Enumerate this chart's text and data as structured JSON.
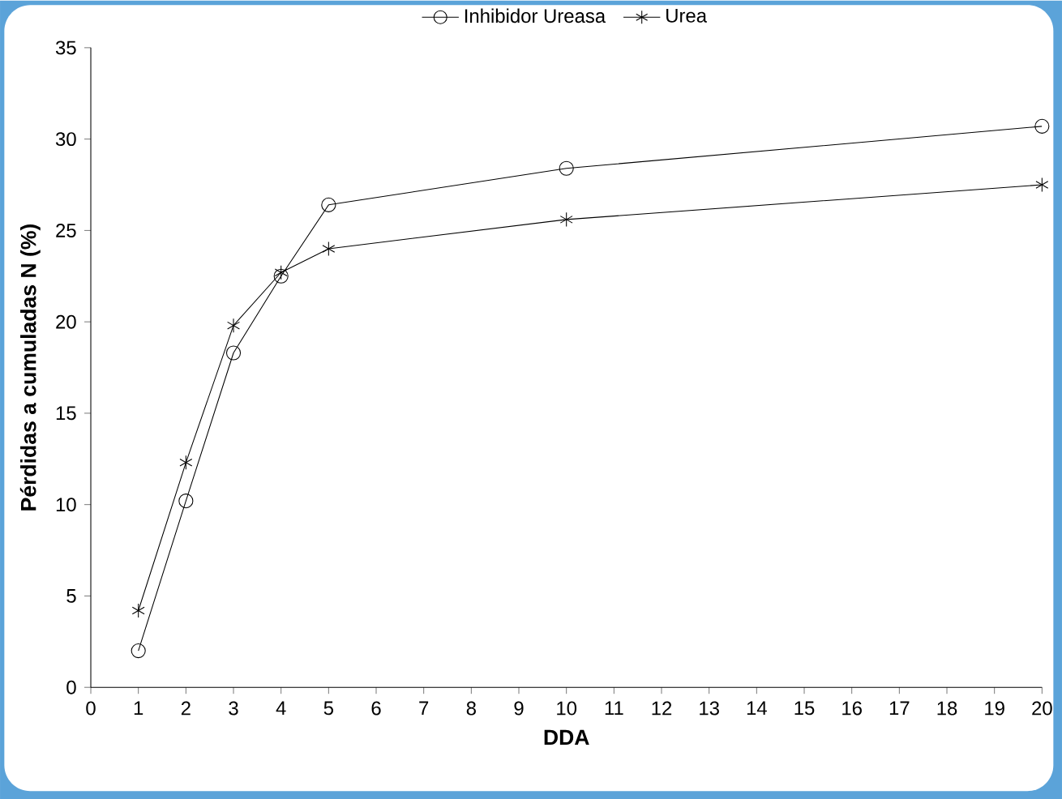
{
  "chart_data": {
    "type": "line",
    "xlabel": "DDA",
    "ylabel": "Pérdidas a cumuladas N (%)",
    "x": [
      1,
      2,
      3,
      4,
      5,
      10,
      20
    ],
    "series": [
      {
        "name": "Inhibidor Ureasa",
        "color": "#000000",
        "marker": "circle",
        "values": [
          2,
          10.2,
          18.3,
          22.5,
          26.4,
          28.4,
          30.7
        ]
      },
      {
        "name": "Urea",
        "color": "#000000",
        "marker": "cross",
        "values": [
          4.2,
          12.3,
          19.8,
          22.7,
          24,
          25.6,
          27.5
        ]
      }
    ],
    "xlim": [
      0,
      20
    ],
    "xticks": [
      0,
      1,
      2,
      3,
      4,
      5,
      6,
      7,
      8,
      9,
      10,
      11,
      12,
      13,
      14,
      15,
      16,
      17,
      18,
      19,
      20
    ],
    "ylim": [
      0,
      35
    ],
    "yticks": [
      0,
      5,
      10,
      15,
      20,
      25,
      30,
      35
    ],
    "grid": false,
    "legend": "top",
    "line_style": "solid"
  }
}
